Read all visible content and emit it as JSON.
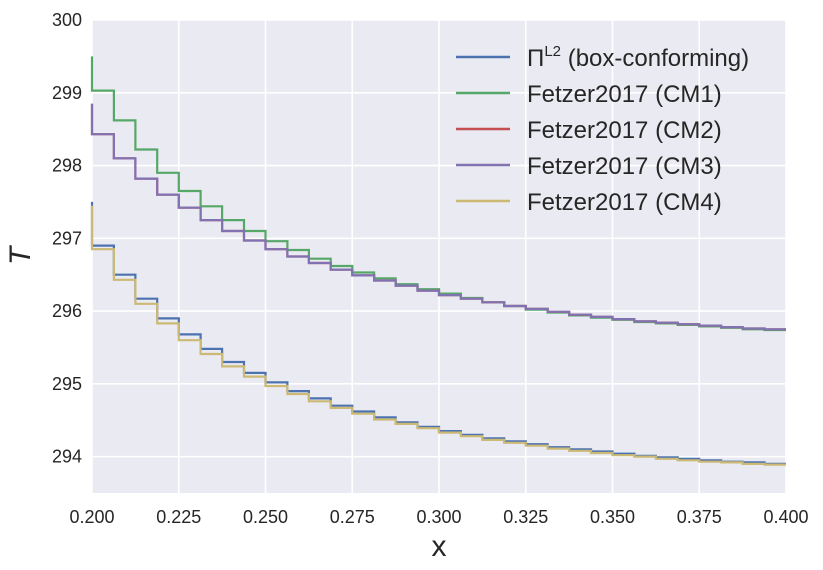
{
  "chart_data": {
    "type": "line",
    "title": "",
    "xlabel": "x",
    "ylabel": "T",
    "xlim": [
      0.2,
      0.4
    ],
    "ylim": [
      293.5,
      300
    ],
    "grid": true,
    "legend_position": "top-right",
    "xticks": [
      "0.200",
      "0.225",
      "0.250",
      "0.275",
      "0.300",
      "0.325",
      "0.350",
      "0.375",
      "0.400"
    ],
    "yticks": [
      "294",
      "295",
      "296",
      "297",
      "298",
      "299",
      "300"
    ],
    "step_nodes": [
      0.2,
      0.2063,
      0.2125,
      0.2188,
      0.225,
      0.2313,
      0.2375,
      0.2438,
      0.25,
      0.2563,
      0.2625,
      0.2688,
      0.275,
      0.2813,
      0.2875,
      0.2938,
      0.3,
      0.3063,
      0.3125,
      0.3188,
      0.325,
      0.3313,
      0.3375,
      0.3438,
      0.35,
      0.3563,
      0.3625,
      0.3688,
      0.375,
      0.3813,
      0.3875,
      0.3938,
      0.4
    ],
    "series": [
      {
        "name": "box-conforming",
        "label_main": "Π",
        "label_sup": "L2",
        "label_rest": " (box-conforming)",
        "color": "#4c72b0",
        "start": 297.5,
        "values": [
          296.9,
          296.5,
          296.17,
          295.9,
          295.68,
          295.48,
          295.3,
          295.15,
          295.02,
          294.9,
          294.8,
          294.7,
          294.62,
          294.54,
          294.47,
          294.41,
          294.35,
          294.3,
          294.25,
          294.21,
          294.17,
          294.13,
          294.1,
          294.07,
          294.04,
          294.01,
          293.99,
          293.97,
          293.95,
          293.93,
          293.92,
          293.9
        ]
      },
      {
        "name": "Fetzer2017 (CM1)",
        "color": "#55a868",
        "start": 299.5,
        "values": [
          299.03,
          298.62,
          298.22,
          297.9,
          297.65,
          297.44,
          297.25,
          297.1,
          296.96,
          296.84,
          296.72,
          296.62,
          296.53,
          296.45,
          296.37,
          296.3,
          296.24,
          296.18,
          296.12,
          296.07,
          296.02,
          295.98,
          295.94,
          295.91,
          295.88,
          295.85,
          295.83,
          295.81,
          295.79,
          295.77,
          295.75,
          295.74
        ]
      },
      {
        "name": "Fetzer2017 (CM2)",
        "color": "#c44e52",
        "start": 298.85,
        "values": [
          298.43,
          298.1,
          297.82,
          297.6,
          297.42,
          297.25,
          297.1,
          296.97,
          296.85,
          296.75,
          296.66,
          296.57,
          296.49,
          296.42,
          296.35,
          296.28,
          296.22,
          296.17,
          296.12,
          296.07,
          296.03,
          295.99,
          295.95,
          295.92,
          295.89,
          295.86,
          295.84,
          295.82,
          295.8,
          295.78,
          295.76,
          295.75
        ]
      },
      {
        "name": "Fetzer2017 (CM3)",
        "color": "#8172b2",
        "start": 298.85,
        "values": [
          298.43,
          298.1,
          297.82,
          297.6,
          297.42,
          297.25,
          297.1,
          296.97,
          296.85,
          296.75,
          296.66,
          296.57,
          296.49,
          296.42,
          296.35,
          296.28,
          296.22,
          296.17,
          296.12,
          296.07,
          296.03,
          295.99,
          295.95,
          295.92,
          295.89,
          295.86,
          295.84,
          295.82,
          295.8,
          295.78,
          295.76,
          295.75
        ]
      },
      {
        "name": "Fetzer2017 (CM4)",
        "color": "#ccb974",
        "start": 297.45,
        "values": [
          296.85,
          296.43,
          296.1,
          295.83,
          295.6,
          295.41,
          295.24,
          295.1,
          294.97,
          294.86,
          294.76,
          294.67,
          294.59,
          294.51,
          294.45,
          294.39,
          294.33,
          294.28,
          294.23,
          294.19,
          294.15,
          294.11,
          294.08,
          294.05,
          294.02,
          294.0,
          293.97,
          293.95,
          293.93,
          293.92,
          293.9,
          293.89
        ]
      }
    ]
  }
}
